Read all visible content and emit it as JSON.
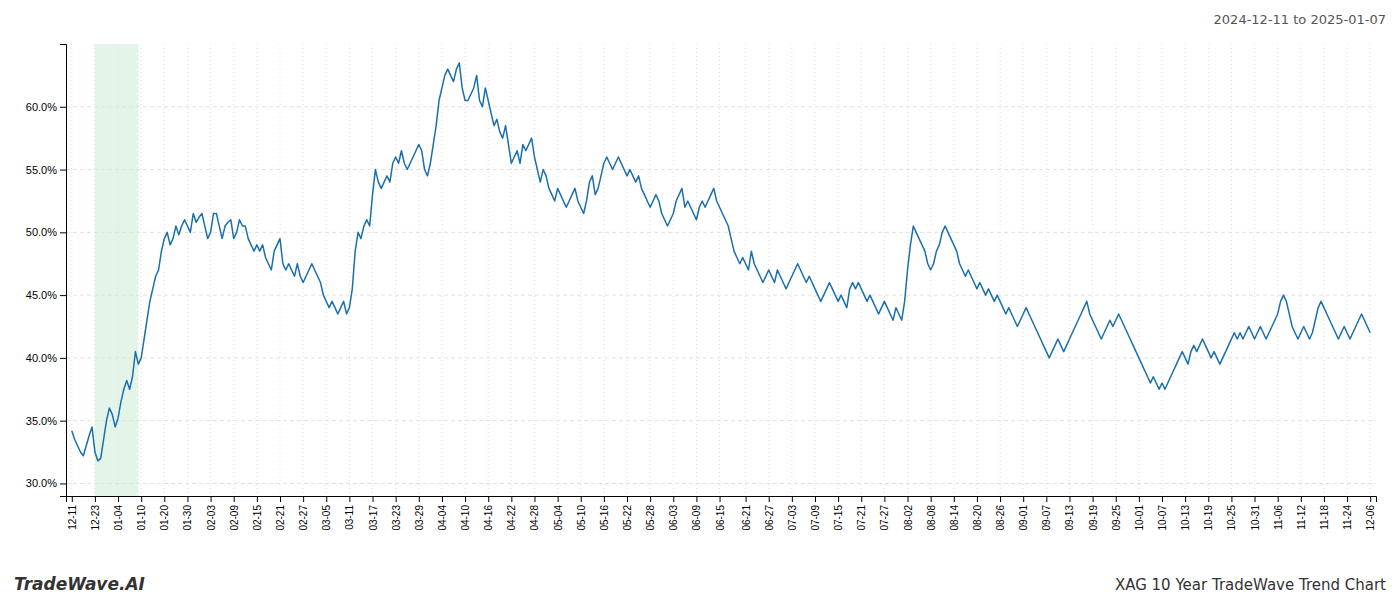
{
  "chart_data": {
    "type": "line",
    "title": "XAG 10 Year TradeWave Trend Chart",
    "subtitle": "2024-12-11 to 2025-01-07",
    "annotations": [
      "TradeWave.AI"
    ],
    "color": "#1a6fad",
    "grid": true,
    "ylim": [
      29.0,
      65.0
    ],
    "yticks": [
      {
        "value": 30.0,
        "label": "30.0%"
      },
      {
        "value": 35.0,
        "label": "35.0%"
      },
      {
        "value": 40.0,
        "label": "40.0%"
      },
      {
        "value": 45.0,
        "label": "45.0%"
      },
      {
        "value": 50.0,
        "label": "50.0%"
      },
      {
        "value": 55.0,
        "label": "55.0%"
      },
      {
        "value": 60.0,
        "label": "60.0%"
      }
    ],
    "highlight": {
      "start": 8,
      "end": 23,
      "color": "#d4edda"
    },
    "categories": [
      "12-11",
      null,
      null,
      null,
      null,
      null,
      null,
      null,
      "12-23",
      null,
      null,
      null,
      null,
      null,
      null,
      null,
      "01-04",
      null,
      null,
      null,
      null,
      null,
      null,
      null,
      "01-10",
      null,
      null,
      null,
      null,
      null,
      null,
      null,
      "01-20",
      null,
      null,
      null,
      null,
      null,
      null,
      null,
      "01-30",
      null,
      null,
      null,
      null,
      null,
      null,
      null,
      "02-03",
      null,
      null,
      null,
      null,
      null,
      null,
      null,
      "02-09",
      null,
      null,
      null,
      null,
      null,
      null,
      null,
      "02-15",
      null,
      null,
      null,
      null,
      null,
      null,
      null,
      "02-21",
      null,
      null,
      null,
      null,
      null,
      null,
      null,
      "02-27",
      null,
      null,
      null,
      null,
      null,
      null,
      null,
      "03-05",
      null,
      null,
      null,
      null,
      null,
      null,
      null,
      "03-11",
      null,
      null,
      null,
      null,
      null,
      null,
      null,
      "03-17",
      null,
      null,
      null,
      null,
      null,
      null,
      null,
      "03-23",
      null,
      null,
      null,
      null,
      null,
      null,
      null,
      "03-29",
      null,
      null,
      null,
      null,
      null,
      null,
      null,
      "04-04",
      null,
      null,
      null,
      null,
      null,
      null,
      null,
      "04-10",
      null,
      null,
      null,
      null,
      null,
      null,
      null,
      "04-16",
      null,
      null,
      null,
      null,
      null,
      null,
      null,
      "04-22",
      null,
      null,
      null,
      null,
      null,
      null,
      null,
      "04-28",
      null,
      null,
      null,
      null,
      null,
      null,
      null,
      "05-04",
      null,
      null,
      null,
      null,
      null,
      null,
      null,
      "05-10",
      null,
      null,
      null,
      null,
      null,
      null,
      null,
      "05-16",
      null,
      null,
      null,
      null,
      null,
      null,
      null,
      "05-22",
      null,
      null,
      null,
      null,
      null,
      null,
      null,
      "05-28",
      null,
      null,
      null,
      null,
      null,
      null,
      null,
      "06-03",
      null,
      null,
      null,
      null,
      null,
      null,
      null,
      "06-09",
      null,
      null,
      null,
      null,
      null,
      null,
      null,
      "06-15",
      null,
      null,
      null,
      null,
      null,
      null,
      null,
      null,
      "06-21",
      null,
      null,
      null,
      null,
      null,
      null,
      null,
      "06-27",
      null,
      null,
      null,
      null,
      null,
      null,
      null,
      "07-03",
      null,
      null,
      null,
      null,
      null,
      null,
      null,
      "07-09",
      null,
      null,
      null,
      null,
      null,
      null,
      null,
      "07-15",
      null,
      null,
      null,
      null,
      null,
      null,
      null,
      "07-21",
      null,
      null,
      null,
      null,
      null,
      null,
      null,
      "07-27",
      null,
      null,
      null,
      null,
      null,
      null,
      null,
      "08-02",
      null,
      null,
      null,
      null,
      null,
      null,
      null,
      "08-08",
      null,
      null,
      null,
      null,
      null,
      null,
      null,
      "08-14",
      null,
      null,
      null,
      null,
      null,
      null,
      null,
      "08-20",
      null,
      null,
      null,
      null,
      null,
      null,
      null,
      "08-26",
      null,
      null,
      null,
      null,
      null,
      null,
      null,
      "09-01",
      null,
      null,
      null,
      null,
      null,
      null,
      null,
      "09-07",
      null,
      null,
      null,
      null,
      null,
      null,
      null,
      "09-13",
      null,
      null,
      null,
      null,
      null,
      null,
      null,
      "09-19",
      null,
      null,
      null,
      null,
      null,
      null,
      null,
      "09-25",
      null,
      null,
      null,
      null,
      null,
      null,
      null,
      "10-01",
      null,
      null,
      null,
      null,
      null,
      null,
      null,
      "10-07",
      null,
      null,
      null,
      null,
      null,
      null,
      null,
      "10-13",
      null,
      null,
      null,
      null,
      null,
      null,
      null,
      "10-19",
      null,
      null,
      null,
      null,
      null,
      null,
      null,
      "10-25",
      null,
      null,
      null,
      null,
      null,
      null,
      null,
      "10-31",
      null,
      null,
      null,
      null,
      null,
      null,
      null,
      "11-06",
      null,
      null,
      null,
      null,
      null,
      null,
      null,
      "11-12",
      null,
      null,
      null,
      null,
      null,
      null,
      null,
      "11-18",
      null,
      null,
      null,
      null,
      null,
      null,
      null,
      "11-24",
      null,
      null,
      null,
      null,
      null,
      null,
      null,
      "12-06"
    ],
    "values": [
      34.2,
      33.5,
      33.0,
      32.5,
      32.2,
      33.0,
      33.8,
      34.5,
      32.5,
      31.8,
      32.0,
      33.5,
      35.0,
      36.0,
      35.5,
      34.5,
      35.2,
      36.5,
      37.5,
      38.2,
      37.5,
      38.5,
      40.5,
      39.5,
      40.0,
      41.5,
      43.0,
      44.5,
      45.5,
      46.5,
      47.0,
      48.5,
      49.5,
      50.0,
      49.0,
      49.5,
      50.5,
      49.8,
      50.5,
      51.0,
      50.5,
      50.0,
      51.5,
      50.8,
      51.2,
      51.5,
      50.5,
      49.5,
      50.0,
      51.5,
      51.5,
      50.5,
      49.5,
      50.5,
      50.8,
      51.0,
      49.5,
      50.0,
      51.0,
      50.5,
      50.5,
      49.5,
      49.0,
      48.5,
      49.0,
      48.5,
      49.0,
      48.0,
      47.5,
      47.0,
      48.5,
      49.0,
      49.5,
      47.5,
      47.0,
      47.5,
      47.0,
      46.5,
      47.5,
      46.5,
      46.0,
      46.5,
      47.0,
      47.5,
      47.0,
      46.5,
      46.0,
      45.0,
      44.5,
      44.0,
      44.5,
      44.0,
      43.5,
      44.0,
      44.5,
      43.5,
      44.0,
      45.5,
      48.5,
      50.0,
      49.5,
      50.5,
      51.0,
      50.5,
      53.0,
      55.0,
      54.0,
      53.5,
      54.0,
      54.5,
      54.0,
      55.5,
      56.0,
      55.5,
      56.5,
      55.5,
      55.0,
      55.5,
      56.0,
      56.5,
      57.0,
      56.5,
      55.0,
      54.5,
      55.5,
      57.0,
      58.5,
      60.5,
      61.5,
      62.5,
      63.0,
      62.5,
      62.0,
      63.0,
      63.5,
      61.5,
      60.5,
      60.5,
      61.0,
      61.5,
      62.5,
      60.5,
      60.0,
      61.5,
      60.5,
      59.5,
      58.5,
      59.0,
      58.0,
      57.5,
      58.5,
      57.0,
      55.5,
      56.0,
      56.5,
      55.5,
      57.0,
      56.5,
      57.0,
      57.5,
      56.0,
      55.0,
      54.0,
      55.0,
      54.5,
      53.5,
      53.0,
      52.5,
      53.5,
      53.0,
      52.5,
      52.0,
      52.5,
      53.0,
      53.5,
      52.5,
      52.0,
      51.5,
      52.5,
      54.0,
      54.5,
      53.0,
      53.5,
      54.5,
      55.5,
      56.0,
      55.5,
      55.0,
      55.5,
      56.0,
      55.5,
      55.0,
      54.5,
      55.0,
      54.5,
      54.0,
      54.5,
      53.5,
      53.0,
      52.5,
      52.0,
      52.5,
      53.0,
      52.5,
      51.5,
      51.0,
      50.5,
      51.0,
      51.5,
      52.5,
      53.0,
      53.5,
      52.0,
      52.5,
      52.0,
      51.5,
      51.0,
      52.0,
      52.5,
      52.0,
      52.5,
      53.0,
      53.5,
      52.5,
      52.0,
      51.5,
      51.0,
      50.5,
      49.5,
      48.5,
      48.0,
      47.5,
      48.0,
      47.5,
      47.0,
      48.5,
      47.5,
      47.0,
      46.5,
      46.0,
      46.5,
      47.0,
      46.5,
      46.0,
      47.0,
      46.5,
      46.0,
      45.5,
      46.0,
      46.5,
      47.0,
      47.5,
      47.0,
      46.5,
      46.0,
      46.5,
      46.0,
      45.5,
      45.0,
      44.5,
      45.0,
      45.5,
      46.0,
      45.5,
      45.0,
      44.5,
      45.0,
      44.5,
      44.0,
      45.5,
      46.0,
      45.5,
      46.0,
      45.5,
      45.0,
      44.5,
      45.0,
      44.5,
      44.0,
      43.5,
      44.0,
      44.5,
      44.0,
      43.5,
      43.0,
      44.0,
      43.5,
      43.0,
      44.5,
      47.0,
      49.0,
      50.5,
      50.0,
      49.5,
      49.0,
      48.5,
      47.5,
      47.0,
      47.5,
      48.5,
      49.0,
      50.0,
      50.5,
      50.0,
      49.5,
      49.0,
      48.5,
      47.5,
      47.0,
      46.5,
      47.0,
      46.5,
      46.0,
      45.5,
      46.0,
      45.5,
      45.0,
      45.5,
      45.0,
      44.5,
      45.0,
      44.5,
      44.0,
      43.5,
      44.0,
      43.5,
      43.0,
      42.5,
      43.0,
      43.5,
      44.0,
      43.5,
      43.0,
      42.5,
      42.0,
      41.5,
      41.0,
      40.5,
      40.0,
      40.5,
      41.0,
      41.5,
      41.0,
      40.5,
      41.0,
      41.5,
      42.0,
      42.5,
      43.0,
      43.5,
      44.0,
      44.5,
      43.5,
      43.0,
      42.5,
      42.0,
      41.5,
      42.0,
      42.5,
      43.0,
      42.5,
      43.0,
      43.5,
      43.0,
      42.5,
      42.0,
      41.5,
      41.0,
      40.5,
      40.0,
      39.5,
      39.0,
      38.5,
      38.0,
      38.5,
      38.0,
      37.5,
      38.0,
      37.5,
      38.0,
      38.5,
      39.0,
      39.5,
      40.0,
      40.5,
      40.0,
      39.5,
      40.5,
      41.0,
      40.5,
      41.0,
      41.5,
      41.0,
      40.5,
      40.0,
      40.5,
      40.0,
      39.5,
      40.0,
      40.5,
      41.0,
      41.5,
      42.0,
      41.5,
      42.0,
      41.5,
      42.0,
      42.5,
      42.0,
      41.5,
      42.0,
      42.5,
      42.0,
      41.5,
      42.0,
      42.5,
      43.0,
      43.5,
      44.5,
      45.0,
      44.5,
      43.5,
      42.5,
      42.0,
      41.5,
      42.0,
      42.5,
      42.0,
      41.5,
      42.0,
      43.0,
      44.0,
      44.5,
      44.0,
      43.5,
      43.0,
      42.5,
      42.0,
      41.5,
      42.0,
      42.5,
      42.0,
      41.5,
      42.0,
      42.5,
      43.0,
      43.5,
      43.0,
      42.5,
      42.0
    ]
  }
}
